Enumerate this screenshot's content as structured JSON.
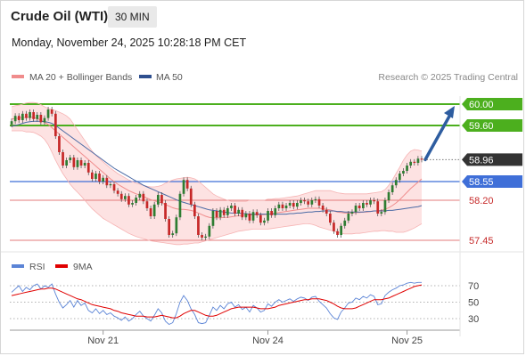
{
  "header": {
    "title": "Crude Oil (WTI)",
    "timeframe": "30 MIN",
    "datetime": "Monday, November 24, 2025 10:28:18 PM CET"
  },
  "legend": {
    "ma20_label": "MA 20 + Bollinger Bands",
    "ma50_label": "MA 50",
    "rsi_label": "RSI",
    "rsi_ma_label": "9MA",
    "copyright": "Research © 2025 Trading Central"
  },
  "colors": {
    "up": "#2e7d32",
    "down": "#c62828",
    "ma20": "#f08c8c",
    "band_fill": "#fde2e2",
    "ma50": "#4a6aa5",
    "resistance": "#4caf1e",
    "support_blue": "#3f6fd8",
    "support_red": "#e37b7b",
    "arrow": "#2e5da0",
    "rsi": "#5b84d6",
    "rsi_ma": "#e00000",
    "last_price_bg": "#333333"
  },
  "chart_data": [
    {
      "type": "candlestick",
      "ylim": [
        57.3,
        60.15
      ],
      "x_tick_labels": [
        "Nov 21",
        "Nov 24",
        "Nov 25"
      ],
      "levels": [
        {
          "value": 60.0,
          "label": "60.00",
          "kind": "resistance"
        },
        {
          "value": 59.6,
          "label": "59.60",
          "kind": "resistance"
        },
        {
          "value": 58.55,
          "label": "58.55",
          "kind": "pivot"
        },
        {
          "value": 58.2,
          "label": "58.20",
          "kind": "support"
        },
        {
          "value": 57.45,
          "label": "57.45",
          "kind": "support"
        }
      ],
      "last_price": {
        "value": 58.96,
        "label": "58.96"
      },
      "target_arrow": {
        "from": 58.96,
        "to": 60.0
      },
      "close": [
        59.68,
        59.78,
        59.7,
        59.82,
        59.74,
        59.85,
        59.72,
        59.8,
        59.66,
        59.74,
        59.9,
        59.82,
        59.4,
        59.1,
        58.85,
        58.95,
        59.0,
        58.82,
        58.95,
        58.85,
        58.9,
        58.72,
        58.6,
        58.7,
        58.55,
        58.62,
        58.48,
        58.5,
        58.38,
        58.32,
        58.22,
        58.28,
        58.12,
        58.15,
        58.25,
        58.32,
        58.18,
        58.05,
        57.9,
        58.12,
        58.3,
        58.15,
        57.85,
        57.55,
        57.58,
        57.88,
        58.32,
        58.58,
        58.42,
        58.12,
        57.9,
        57.55,
        57.5,
        57.52,
        57.72,
        58.0,
        57.88,
        58.02,
        57.92,
        58.05,
        58.1,
        57.95,
        58.02,
        57.88,
        57.95,
        57.82,
        57.98,
        57.92,
        57.78,
        57.82,
        58.0,
        57.92,
        58.05,
        58.12,
        58.05,
        58.1,
        58.15,
        58.08,
        58.15,
        58.2,
        58.18,
        58.12,
        58.2,
        58.22,
        58.1,
        58.02,
        57.95,
        57.78,
        57.62,
        57.55,
        57.72,
        57.82,
        57.95,
        57.98,
        58.1,
        58.05,
        58.15,
        58.12,
        58.2,
        58.18,
        57.95,
        57.98,
        58.2,
        58.35,
        58.48,
        58.58,
        58.7,
        58.75,
        58.85,
        58.92,
        58.9,
        58.98,
        58.96
      ],
      "ma20": [
        59.72,
        59.73,
        59.74,
        59.75,
        59.75,
        59.76,
        59.75,
        59.73,
        59.7,
        59.66,
        59.62,
        59.56,
        59.5,
        59.44,
        59.38,
        59.32,
        59.26,
        59.2,
        59.14,
        59.08,
        59.02,
        58.96,
        58.9,
        58.84,
        58.78,
        58.72,
        58.66,
        58.6,
        58.55,
        58.5,
        58.46,
        58.42,
        58.38,
        58.35,
        58.32,
        58.3,
        58.27,
        58.24,
        58.21,
        58.19,
        58.17,
        58.15,
        58.12,
        58.09,
        58.06,
        58.04,
        58.03,
        58.03,
        58.02,
        58.01,
        57.99,
        57.96,
        57.93,
        57.9,
        57.88,
        57.87,
        57.87,
        57.87,
        57.88,
        57.88,
        57.89,
        57.9,
        57.91,
        57.91,
        57.92,
        57.92,
        57.93,
        57.93,
        57.93,
        57.93,
        57.94,
        57.95,
        57.96,
        57.97,
        57.98,
        57.99,
        58.0,
        58.01,
        58.02,
        58.03,
        58.04,
        58.05,
        58.05,
        58.05,
        58.05,
        58.04,
        58.03,
        58.02,
        58.0,
        57.98,
        57.97,
        57.96,
        57.96,
        57.96,
        57.97,
        57.97,
        57.98,
        57.98,
        57.99,
        58.0,
        58.0,
        58.01,
        58.03,
        58.06,
        58.1,
        58.15,
        58.21,
        58.28,
        58.35,
        58.42,
        58.48,
        58.54,
        58.6
      ],
      "bb_upper": [
        59.95,
        59.97,
        59.98,
        60.0,
        60.02,
        60.03,
        60.03,
        60.02,
        59.99,
        59.95,
        59.92,
        59.9,
        59.88,
        59.85,
        59.82,
        59.78,
        59.72,
        59.62,
        59.52,
        59.42,
        59.32,
        59.22,
        59.12,
        59.04,
        58.98,
        58.92,
        58.86,
        58.8,
        58.75,
        58.7,
        58.66,
        58.62,
        58.58,
        58.55,
        58.52,
        58.5,
        58.48,
        58.46,
        58.45,
        58.45,
        58.46,
        58.48,
        58.52,
        58.55,
        58.58,
        58.6,
        58.61,
        58.62,
        58.63,
        58.62,
        58.6,
        58.56,
        58.5,
        58.44,
        58.38,
        58.32,
        58.28,
        58.25,
        58.22,
        58.2,
        58.18,
        58.18,
        58.18,
        58.18,
        58.18,
        58.2,
        58.2,
        58.2,
        58.2,
        58.2,
        58.22,
        58.22,
        58.23,
        58.23,
        58.24,
        58.25,
        58.26,
        58.27,
        58.28,
        58.3,
        58.32,
        58.34,
        58.36,
        58.38,
        58.38,
        58.38,
        58.38,
        58.38,
        58.36,
        58.34,
        58.33,
        58.32,
        58.32,
        58.32,
        58.32,
        58.32,
        58.32,
        58.32,
        58.33,
        58.34,
        58.35,
        58.36,
        58.4,
        58.48,
        58.58,
        58.7,
        58.82,
        58.95,
        59.05,
        59.12,
        59.15,
        59.14,
        59.12
      ],
      "bb_lower": [
        59.5,
        59.5,
        59.5,
        59.5,
        59.48,
        59.48,
        59.47,
        59.44,
        59.4,
        59.34,
        59.24,
        59.1,
        58.95,
        58.82,
        58.7,
        58.6,
        58.5,
        58.42,
        58.35,
        58.28,
        58.2,
        58.12,
        58.04,
        57.98,
        57.92,
        57.86,
        57.82,
        57.78,
        57.74,
        57.7,
        57.66,
        57.62,
        57.58,
        57.55,
        57.52,
        57.5,
        57.48,
        57.46,
        57.44,
        57.43,
        57.42,
        57.41,
        57.4,
        57.39,
        57.38,
        57.37,
        57.37,
        57.38,
        57.38,
        57.39,
        57.4,
        57.4,
        57.42,
        57.44,
        57.46,
        57.48,
        57.5,
        57.52,
        57.54,
        57.56,
        57.58,
        57.6,
        57.62,
        57.63,
        57.64,
        57.65,
        57.66,
        57.66,
        57.66,
        57.66,
        57.66,
        57.67,
        57.68,
        57.69,
        57.7,
        57.71,
        57.72,
        57.73,
        57.74,
        57.75,
        57.76,
        57.76,
        57.75,
        57.73,
        57.7,
        57.68,
        57.66,
        57.64,
        57.62,
        57.6,
        57.58,
        57.57,
        57.57,
        57.57,
        57.58,
        57.58,
        57.59,
        57.6,
        57.61,
        57.62,
        57.62,
        57.63,
        57.63,
        57.62,
        57.62,
        57.6,
        57.6,
        57.6,
        57.62,
        57.65,
        57.68,
        57.72,
        57.76
      ],
      "ma50": [
        59.58,
        59.6,
        59.62,
        59.64,
        59.66,
        59.67,
        59.68,
        59.68,
        59.68,
        59.67,
        59.66,
        59.64,
        59.6,
        59.55,
        59.5,
        59.45,
        59.4,
        59.35,
        59.3,
        59.25,
        59.2,
        59.15,
        59.1,
        59.05,
        59.0,
        58.95,
        58.9,
        58.85,
        58.8,
        58.76,
        58.72,
        58.68,
        58.64,
        58.6,
        58.56,
        58.52,
        58.48,
        58.45,
        58.42,
        58.39,
        58.36,
        58.33,
        58.3,
        58.27,
        58.24,
        58.21,
        58.18,
        58.16,
        58.14,
        58.12,
        58.1,
        58.08,
        58.06,
        58.04,
        58.02,
        58.01,
        58.0,
        57.99,
        57.98,
        57.97,
        57.96,
        57.96,
        57.96,
        57.95,
        57.95,
        57.94,
        57.94,
        57.94,
        57.94,
        57.94,
        57.94,
        57.94,
        57.94,
        57.94,
        57.94,
        57.94,
        57.95,
        57.95,
        57.96,
        57.96,
        57.97,
        57.98,
        57.98,
        57.99,
        57.99,
        58.0,
        58.0,
        58.0,
        58.0,
        57.99,
        57.99,
        57.98,
        57.98,
        57.98,
        57.98,
        57.98,
        57.98,
        57.99,
        57.99,
        58.0,
        58.0,
        58.0,
        58.0,
        58.01,
        58.01,
        58.02,
        58.03,
        58.04,
        58.05,
        58.06,
        58.07,
        58.08,
        58.1
      ]
    },
    {
      "type": "line",
      "name": "RSI",
      "ylim": [
        20,
        80
      ],
      "y_ticks": [
        70,
        50,
        30
      ],
      "y_tick_labels": [
        "70",
        "50",
        "30"
      ],
      "rsi": [
        62,
        66,
        70,
        63,
        68,
        65,
        70,
        72,
        66,
        70,
        68,
        72,
        60,
        50,
        43,
        47,
        52,
        44,
        52,
        46,
        49,
        40,
        37,
        42,
        36,
        40,
        35,
        37,
        33,
        31,
        28,
        32,
        27,
        30,
        35,
        39,
        33,
        30,
        27,
        34,
        42,
        37,
        27,
        23,
        25,
        36,
        50,
        58,
        52,
        42,
        35,
        25,
        24,
        25,
        34,
        44,
        40,
        46,
        42,
        48,
        50,
        44,
        47,
        41,
        44,
        38,
        46,
        43,
        38,
        40,
        48,
        45,
        50,
        53,
        50,
        52,
        54,
        51,
        54,
        56,
        55,
        52,
        56,
        57,
        51,
        47,
        43,
        36,
        31,
        29,
        38,
        43,
        49,
        50,
        55,
        53,
        57,
        55,
        59,
        57,
        47,
        48,
        58,
        62,
        65,
        67,
        70,
        71,
        73,
        74,
        73,
        74,
        74
      ],
      "rsi_ma": [
        58,
        59,
        60,
        61,
        62,
        63,
        64,
        65,
        66,
        66,
        67,
        67,
        66,
        64,
        62,
        60,
        58,
        56,
        54,
        53,
        51,
        49,
        47,
        46,
        45,
        44,
        43,
        42,
        40,
        39,
        37,
        36,
        35,
        34,
        33,
        33,
        33,
        32,
        32,
        32,
        33,
        34,
        33,
        32,
        31,
        31,
        33,
        36,
        38,
        40,
        40,
        38,
        36,
        34,
        33,
        33,
        34,
        36,
        38,
        40,
        42,
        43,
        44,
        44,
        44,
        44,
        44,
        43,
        42,
        42,
        42,
        43,
        44,
        46,
        47,
        48,
        49,
        50,
        51,
        52,
        53,
        53,
        54,
        54,
        54,
        53,
        52,
        50,
        48,
        45,
        43,
        42,
        42,
        42,
        43,
        45,
        47,
        49,
        51,
        53,
        53,
        53,
        54,
        55,
        57,
        59,
        61,
        63,
        65,
        67,
        69,
        70,
        71
      ]
    }
  ]
}
